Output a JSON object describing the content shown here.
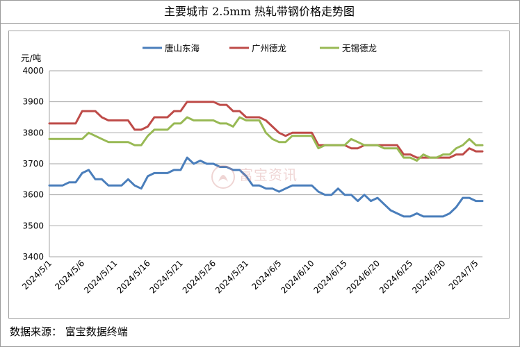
{
  "header": {
    "title": "主要城市 2.5mm 热轧带钢价格走势图"
  },
  "footer": {
    "source": "数据来源：  富宝数据终端"
  },
  "watermark": {
    "text": "富宝资讯"
  },
  "chart_data": {
    "type": "line",
    "title": "主要城市 2.5mm 热轧带钢价格走势图",
    "ylabel": "元/吨",
    "ylim": [
      3400,
      4000
    ],
    "yticks": [
      3400,
      3500,
      3600,
      3700,
      3800,
      3900,
      4000
    ],
    "grid": "horizontal",
    "legend": "top",
    "x_tick_labels": [
      "2024/5/1",
      "2024/5/6",
      "2024/5/11",
      "2024/5/16",
      "2024/5/21",
      "2024/5/26",
      "2024/5/31",
      "2024/6/5",
      "2024/6/10",
      "2024/6/15",
      "2024/6/20",
      "2024/6/25",
      "2024/6/30",
      "2024/7/5"
    ],
    "x": [
      "5/1",
      "5/2",
      "5/3",
      "5/4",
      "5/5",
      "5/6",
      "5/7",
      "5/8",
      "5/9",
      "5/10",
      "5/11",
      "5/12",
      "5/13",
      "5/14",
      "5/15",
      "5/16",
      "5/17",
      "5/18",
      "5/19",
      "5/20",
      "5/21",
      "5/22",
      "5/23",
      "5/24",
      "5/25",
      "5/26",
      "5/27",
      "5/28",
      "5/29",
      "5/30",
      "5/31",
      "6/1",
      "6/2",
      "6/3",
      "6/4",
      "6/5",
      "6/6",
      "6/7",
      "6/8",
      "6/9",
      "6/10",
      "6/11",
      "6/12",
      "6/13",
      "6/14",
      "6/15",
      "6/16",
      "6/17",
      "6/18",
      "6/19",
      "6/20",
      "6/21",
      "6/22",
      "6/23",
      "6/24",
      "6/25",
      "6/26",
      "6/27",
      "6/28",
      "6/29",
      "6/30",
      "7/1",
      "7/2",
      "7/3",
      "7/4",
      "7/5",
      "7/6"
    ],
    "series": [
      {
        "name": "唐山东海",
        "color": "#4a7ebb",
        "values": [
          3630,
          3630,
          3630,
          3640,
          3640,
          3670,
          3680,
          3650,
          3650,
          3630,
          3630,
          3630,
          3650,
          3630,
          3620,
          3660,
          3670,
          3670,
          3670,
          3680,
          3680,
          3720,
          3700,
          3710,
          3700,
          3700,
          3690,
          3690,
          3680,
          3680,
          3660,
          3630,
          3630,
          3620,
          3620,
          3610,
          3620,
          3630,
          3630,
          3630,
          3630,
          3610,
          3600,
          3600,
          3620,
          3600,
          3600,
          3580,
          3600,
          3580,
          3590,
          3570,
          3550,
          3540,
          3530,
          3530,
          3540,
          3530,
          3530,
          3530,
          3530,
          3540,
          3560,
          3590,
          3590,
          3580,
          3580
        ]
      },
      {
        "name": "广州德龙",
        "color": "#be4b48",
        "values": [
          3830,
          3830,
          3830,
          3830,
          3830,
          3870,
          3870,
          3870,
          3850,
          3840,
          3840,
          3840,
          3840,
          3810,
          3810,
          3820,
          3850,
          3850,
          3850,
          3870,
          3870,
          3900,
          3900,
          3900,
          3900,
          3900,
          3890,
          3890,
          3870,
          3870,
          3850,
          3850,
          3850,
          3840,
          3820,
          3800,
          3790,
          3800,
          3800,
          3800,
          3800,
          3760,
          3760,
          3760,
          3760,
          3760,
          3750,
          3750,
          3760,
          3760,
          3760,
          3760,
          3760,
          3760,
          3730,
          3730,
          3720,
          3720,
          3720,
          3720,
          3720,
          3720,
          3730,
          3730,
          3750,
          3740,
          3740
        ]
      },
      {
        "name": "无锡德龙",
        "color": "#98b954",
        "values": [
          3780,
          3780,
          3780,
          3780,
          3780,
          3780,
          3800,
          3790,
          3780,
          3770,
          3770,
          3770,
          3770,
          3760,
          3760,
          3790,
          3810,
          3810,
          3810,
          3830,
          3830,
          3850,
          3840,
          3840,
          3840,
          3840,
          3830,
          3830,
          3820,
          3850,
          3840,
          3840,
          3840,
          3800,
          3780,
          3770,
          3770,
          3790,
          3790,
          3790,
          3790,
          3750,
          3760,
          3760,
          3760,
          3760,
          3780,
          3770,
          3760,
          3760,
          3760,
          3750,
          3750,
          3750,
          3720,
          3720,
          3710,
          3730,
          3720,
          3720,
          3730,
          3730,
          3750,
          3760,
          3780,
          3760,
          3760
        ]
      }
    ]
  }
}
